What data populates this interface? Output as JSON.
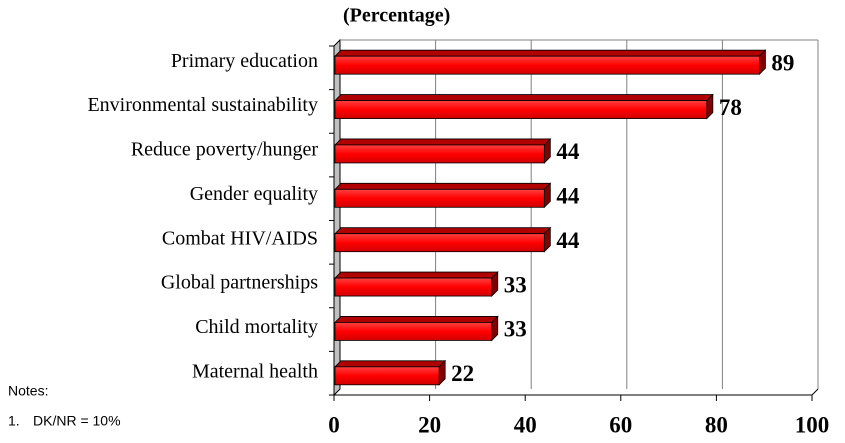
{
  "chart_data": {
    "type": "bar",
    "orientation": "horizontal",
    "title": "(Percentage)",
    "categories": [
      "Primary education",
      "Environmental sustainability",
      "Reduce poverty/hunger",
      "Gender equality",
      "Combat HIV/AIDS",
      "Global partnerships",
      "Child mortality",
      "Maternal health"
    ],
    "values": [
      89,
      78,
      44,
      44,
      44,
      33,
      33,
      22
    ],
    "color": "#ff0000",
    "xlim": [
      0,
      100
    ],
    "xticks": [
      0,
      20,
      40,
      60,
      80,
      100
    ],
    "grid": true,
    "notes": {
      "heading": "Notes:",
      "items": [
        {
          "number": "1.",
          "text": "DK/NR = 10%"
        }
      ]
    }
  }
}
